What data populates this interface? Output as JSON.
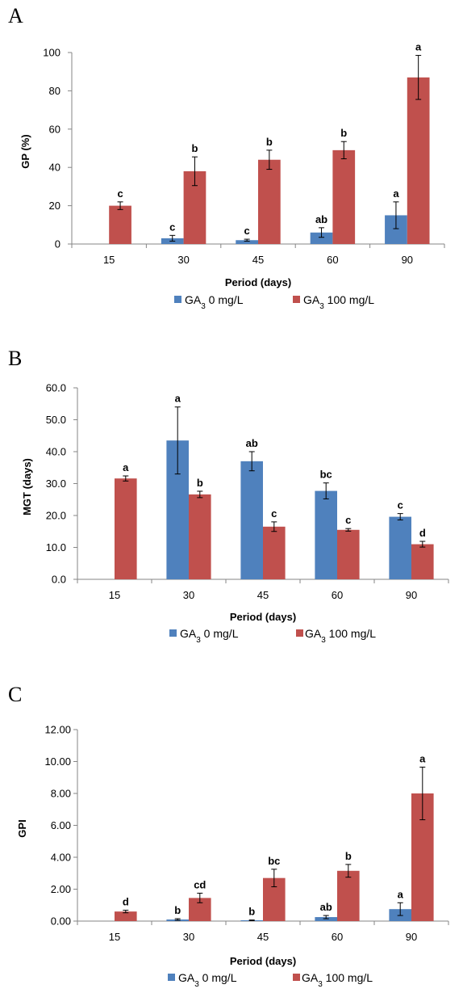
{
  "colors": {
    "ga0": "#4F81BD",
    "ga100": "#C0504D",
    "axis": "#868686"
  },
  "chart_data": [
    {
      "panel": "A",
      "type": "bar",
      "categories": [
        "15",
        "30",
        "45",
        "60",
        "90"
      ],
      "xlabel": "Period (days)",
      "ylabel": "GP (%)",
      "ylim": [
        0,
        100
      ],
      "yticks": [
        "0",
        "20",
        "40",
        "60",
        "80",
        "100"
      ],
      "series": [
        {
          "name": "GA3 0 mg/L",
          "legend_base": "GA",
          "legend_sub": "3",
          "legend_rest": " 0 mg/L",
          "values": [
            0,
            3,
            2,
            6,
            15
          ],
          "errors": [
            0,
            1.5,
            0.5,
            2.5,
            7
          ],
          "letters": [
            "",
            "c",
            "c",
            "ab",
            "a"
          ]
        },
        {
          "name": "GA3 100 mg/L",
          "legend_base": "GA",
          "legend_sub": "3",
          "legend_rest": " 100 mg/L",
          "values": [
            20,
            38,
            44,
            49,
            87
          ],
          "errors": [
            2,
            7.5,
            5,
            4.5,
            11.5
          ],
          "letters": [
            "c",
            "b",
            "b",
            "b",
            "a"
          ]
        }
      ]
    },
    {
      "panel": "B",
      "type": "bar",
      "categories": [
        "15",
        "30",
        "45",
        "60",
        "90"
      ],
      "xlabel": "Period (days)",
      "ylabel": "MGT (days)",
      "ylim": [
        0,
        60
      ],
      "yticks": [
        "0.0",
        "10.0",
        "20.0",
        "30.0",
        "40.0",
        "50.0",
        "60.0"
      ],
      "series": [
        {
          "name": "GA3 0 mg/L",
          "legend_base": "GA",
          "legend_sub": "3",
          "legend_rest": " 0 mg/L",
          "values": [
            0,
            43.5,
            37,
            27.7,
            19.6
          ],
          "errors": [
            0,
            10.5,
            3,
            2.5,
            1
          ],
          "letters": [
            "",
            "a",
            "ab",
            "bc",
            "c"
          ]
        },
        {
          "name": "GA3 100 mg/L",
          "legend_base": "GA",
          "legend_sub": "3",
          "legend_rest": " 100 mg/L",
          "values": [
            31.6,
            26.6,
            16.5,
            15.5,
            11
          ],
          "errors": [
            0.8,
            1,
            1.5,
            0.4,
            0.9
          ],
          "letters": [
            "a",
            "b",
            "c",
            "c",
            "d"
          ]
        }
      ]
    },
    {
      "panel": "C",
      "type": "bar",
      "categories": [
        "15",
        "30",
        "45",
        "60",
        "90"
      ],
      "xlabel": "Period (days)",
      "ylabel": "GPI",
      "ylim": [
        0,
        12
      ],
      "yticks": [
        "0.00",
        "2.00",
        "4.00",
        "6.00",
        "8.00",
        "10.00",
        "12.00"
      ],
      "series": [
        {
          "name": "GA3 0 mg/L",
          "legend_base": "GA",
          "legend_sub": "3",
          "legend_rest": " 0 mg/L",
          "values": [
            0,
            0.1,
            0.05,
            0.25,
            0.75
          ],
          "errors": [
            0,
            0.05,
            0.02,
            0.1,
            0.4
          ],
          "letters": [
            "",
            "b",
            "b",
            "ab",
            "a"
          ]
        },
        {
          "name": "GA3 100 mg/L",
          "legend_base": "GA",
          "legend_sub": "3",
          "legend_rest": " 100 mg/L",
          "values": [
            0.6,
            1.45,
            2.7,
            3.15,
            8
          ],
          "errors": [
            0.08,
            0.3,
            0.55,
            0.4,
            1.65
          ],
          "letters": [
            "d",
            "cd",
            "bc",
            "b",
            "a"
          ]
        }
      ]
    }
  ]
}
